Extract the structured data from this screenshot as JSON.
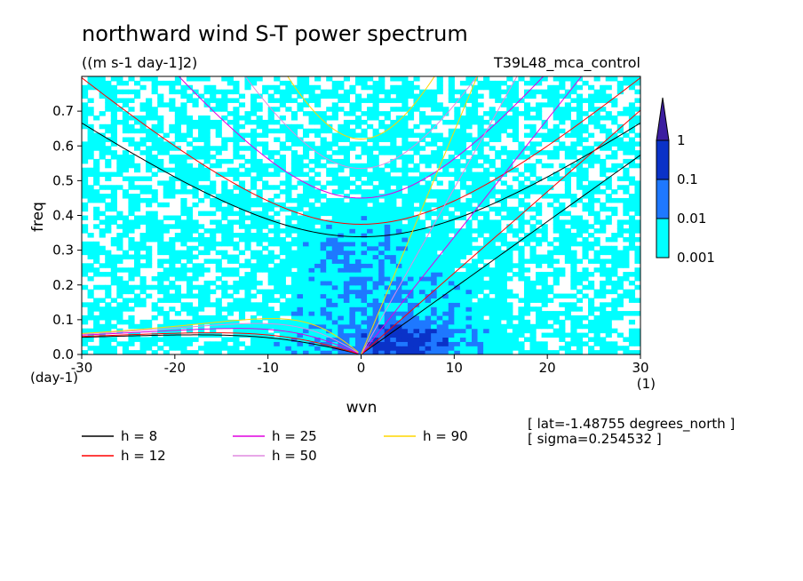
{
  "chart_data": {
    "type": "heatmap",
    "title": "northward wind S-T power spectrum",
    "units": "((m s-1 day-1]2)",
    "experiment": "T39L48_mca_control",
    "xlabel": "wvn",
    "ylabel": "freq",
    "x_unit": "(1)",
    "y_unit": "(day-1)",
    "xlim": [
      -30,
      30
    ],
    "ylim": [
      0,
      0.8
    ],
    "x_ticks": [
      "-30",
      "-20",
      "-10",
      "0",
      "10",
      "20",
      "30"
    ],
    "y_ticks": [
      "0.0",
      "0.1",
      "0.2",
      "0.3",
      "0.4",
      "0.5",
      "0.6",
      "0.7"
    ],
    "colorbar": {
      "levels": [
        "0.001",
        "0.01",
        "0.1",
        "1"
      ],
      "colors": [
        "#00ffff",
        "#1e78ff",
        "#0a32c8",
        "#3c1ea0"
      ]
    },
    "dispersion_curves": [
      {
        "label": "h =  8",
        "h": 8,
        "color": "#000000"
      },
      {
        "label": "h = 12",
        "h": 12,
        "color": "#ff0000"
      },
      {
        "label": "h = 25",
        "h": 25,
        "color": "#e000e0"
      },
      {
        "label": "h = 50",
        "h": 50,
        "color": "#e08ae0"
      },
      {
        "label": "h = 90",
        "h": 90,
        "color": "#ffd700"
      }
    ],
    "annotations": [
      "[ lat=-1.48755 degrees_north ]",
      "[ sigma=0.254532 ]"
    ]
  }
}
